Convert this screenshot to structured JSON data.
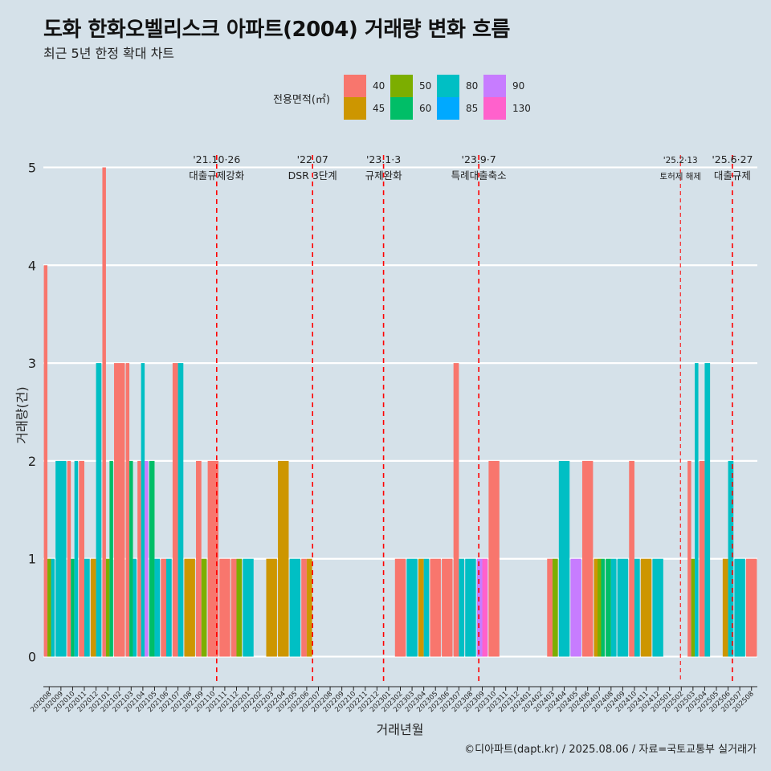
{
  "title": "도화 한화오벨리스크 아파트(2004) 거래량 변화 흐름",
  "subtitle": "최근 5년 한정 확대 차트",
  "caption": "©디아파트(dapt.kr) / 2025.08.06 / 자료=국토교통부 실거래가",
  "legend": {
    "title": "전용면적(㎡)",
    "items": [
      {
        "label": "40",
        "color": "#F8766D"
      },
      {
        "label": "45",
        "color": "#CD9600"
      },
      {
        "label": "50",
        "color": "#7CAE00"
      },
      {
        "label": "60",
        "color": "#00BE67"
      },
      {
        "label": "80",
        "color": "#00BFC4"
      },
      {
        "label": "85",
        "color": "#00A9FF"
      },
      {
        "label": "90",
        "color": "#C77CFF"
      },
      {
        "label": "130",
        "color": "#FF61CC"
      }
    ]
  },
  "chart_data": {
    "type": "bar",
    "xlabel": "거래년월",
    "ylabel": "거래량(건)",
    "ylim": [
      -0.25,
      5.25
    ],
    "yticks": [
      0,
      1,
      2,
      3,
      4,
      5
    ],
    "grid": true,
    "legend_position": "top",
    "categories": [
      "202008",
      "202009",
      "202010",
      "202011",
      "202012",
      "202101",
      "202102",
      "202103",
      "202104",
      "202105",
      "202106",
      "202107",
      "202108",
      "202109",
      "202110",
      "202111",
      "202112",
      "202201",
      "202202",
      "202203",
      "202204",
      "202205",
      "202206",
      "202207",
      "202208",
      "202209",
      "202210",
      "202211",
      "202212",
      "202301",
      "202302",
      "202303",
      "202304",
      "202305",
      "202306",
      "202307",
      "202308",
      "202309",
      "202310",
      "202311",
      "202312",
      "202401",
      "202402",
      "202403",
      "202404",
      "202405",
      "202406",
      "202407",
      "202408",
      "202409",
      "202410",
      "202411",
      "202412",
      "202501",
      "202502",
      "202503",
      "202504",
      "202505",
      "202506",
      "202507",
      "202508"
    ],
    "series": [
      {
        "name": "40",
        "color": "#F8766D",
        "values": [
          4,
          0,
          2,
          2,
          0,
          5,
          3,
          3,
          2,
          0,
          1,
          3,
          0,
          2,
          2,
          1,
          1,
          0,
          0,
          0,
          0,
          0,
          1,
          0,
          0,
          0,
          0,
          0,
          0,
          0,
          1,
          0,
          0,
          1,
          1,
          3,
          0,
          0,
          2,
          0,
          0,
          0,
          0,
          1,
          0,
          0,
          2,
          0,
          0,
          0,
          2,
          0,
          0,
          0,
          0,
          2,
          2,
          0,
          0,
          0,
          1
        ]
      },
      {
        "name": "45",
        "color": "#CD9600",
        "values": [
          0,
          0,
          0,
          0,
          1,
          0,
          0,
          0,
          0,
          0,
          0,
          0,
          1,
          0,
          0,
          0,
          0,
          0,
          0,
          1,
          2,
          0,
          1,
          0,
          0,
          0,
          0,
          0,
          0,
          0,
          0,
          0,
          1,
          0,
          0,
          0,
          0,
          0,
          0,
          0,
          0,
          0,
          0,
          0,
          0,
          0,
          0,
          1,
          0,
          0,
          0,
          1,
          0,
          0,
          0,
          0,
          0,
          0,
          1,
          0,
          0
        ]
      },
      {
        "name": "50",
        "color": "#7CAE00",
        "values": [
          1,
          0,
          0,
          0,
          0,
          1,
          0,
          0,
          0,
          0,
          0,
          0,
          0,
          1,
          0,
          0,
          1,
          0,
          0,
          0,
          0,
          0,
          0,
          0,
          0,
          0,
          0,
          0,
          0,
          0,
          0,
          0,
          0,
          0,
          0,
          0,
          0,
          0,
          0,
          0,
          0,
          0,
          0,
          1,
          0,
          0,
          0,
          1,
          0,
          0,
          0,
          0,
          0,
          0,
          0,
          1,
          0,
          0,
          0,
          0,
          0
        ]
      },
      {
        "name": "60",
        "color": "#00BE67",
        "values": [
          0,
          0,
          1,
          0,
          0,
          2,
          0,
          2,
          0,
          2,
          0,
          0,
          0,
          0,
          0,
          0,
          0,
          0,
          0,
          0,
          0,
          0,
          0,
          0,
          0,
          0,
          0,
          0,
          0,
          0,
          0,
          0,
          0,
          0,
          0,
          0,
          0,
          0,
          0,
          0,
          0,
          0,
          0,
          0,
          0,
          0,
          0,
          1,
          1,
          0,
          0,
          0,
          0,
          0,
          0,
          0,
          0,
          0,
          0,
          0,
          0
        ]
      },
      {
        "name": "80",
        "color": "#00BFC4",
        "values": [
          1,
          2,
          2,
          1,
          3,
          0,
          0,
          1,
          3,
          1,
          1,
          3,
          0,
          0,
          0,
          0,
          0,
          1,
          0,
          0,
          0,
          1,
          0,
          0,
          0,
          0,
          0,
          0,
          0,
          0,
          0,
          1,
          1,
          0,
          0,
          1,
          1,
          0,
          0,
          0,
          0,
          0,
          0,
          0,
          2,
          0,
          0,
          0,
          1,
          1,
          1,
          0,
          1,
          0,
          0,
          3,
          3,
          0,
          2,
          1,
          0
        ]
      },
      {
        "name": "85",
        "color": "#00A9FF",
        "values": [
          0,
          0,
          0,
          0,
          0,
          0,
          0,
          0,
          0,
          0,
          0,
          0,
          0,
          0,
          0,
          0,
          0,
          0,
          0,
          0,
          0,
          0,
          0,
          0,
          0,
          0,
          0,
          0,
          0,
          0,
          0,
          0,
          0,
          0,
          0,
          0,
          0,
          0,
          0,
          0,
          0,
          0,
          0,
          0,
          0,
          0,
          0,
          0,
          0,
          0,
          0,
          0,
          0,
          0,
          0,
          0,
          0,
          0,
          0,
          0,
          0
        ]
      },
      {
        "name": "90",
        "color": "#C77CFF",
        "values": [
          0,
          0,
          0,
          0,
          0,
          0,
          0,
          0,
          2,
          0,
          0,
          0,
          0,
          0,
          0,
          0,
          0,
          0,
          0,
          0,
          0,
          0,
          0,
          0,
          0,
          0,
          0,
          0,
          0,
          0,
          0,
          0,
          0,
          0,
          0,
          0,
          0,
          1,
          0,
          0,
          0,
          0,
          0,
          0,
          0,
          1,
          0,
          0,
          0,
          0,
          0,
          0,
          0,
          0,
          0,
          0,
          0,
          0,
          0,
          0,
          0
        ]
      },
      {
        "name": "130",
        "color": "#FF61CC",
        "values": [
          0,
          0,
          0,
          0,
          0,
          0,
          0,
          0,
          0,
          0,
          0,
          0,
          0,
          0,
          0,
          0,
          0,
          0,
          0,
          0,
          0,
          0,
          0,
          0,
          0,
          0,
          0,
          0,
          0,
          0,
          0,
          0,
          0,
          0,
          0,
          0,
          0,
          1,
          0,
          0,
          0,
          0,
          0,
          0,
          0,
          0,
          0,
          0,
          0,
          0,
          0,
          0,
          0,
          0,
          0,
          0,
          0,
          0,
          0,
          0,
          0
        ]
      }
    ],
    "annotations": [
      {
        "date": "2021-10-26",
        "line1": "'21.10·26",
        "line2": "대출규제강화",
        "style": "dashed"
      },
      {
        "date": "2022-07",
        "line1": "'22.07",
        "line2": "DSR 3단계",
        "style": "dashed"
      },
      {
        "date": "2023-01-03",
        "line1": "'23.1·3",
        "line2": "규제완화",
        "style": "dashed"
      },
      {
        "date": "2023-09-07",
        "line1": "'23.9·7",
        "line2": "특례대출축소",
        "style": "dashed"
      },
      {
        "date": "2025-02-13",
        "line1": "'25.2·13",
        "line2": "토허제 해제",
        "style": "dashed-thin"
      },
      {
        "date": "2025-06-27",
        "line1": "'25.6·27",
        "line2": "대출규제",
        "style": "dashed"
      }
    ],
    "annotation_color": "#FF0000",
    "grid_color": "#FFFFFF"
  }
}
